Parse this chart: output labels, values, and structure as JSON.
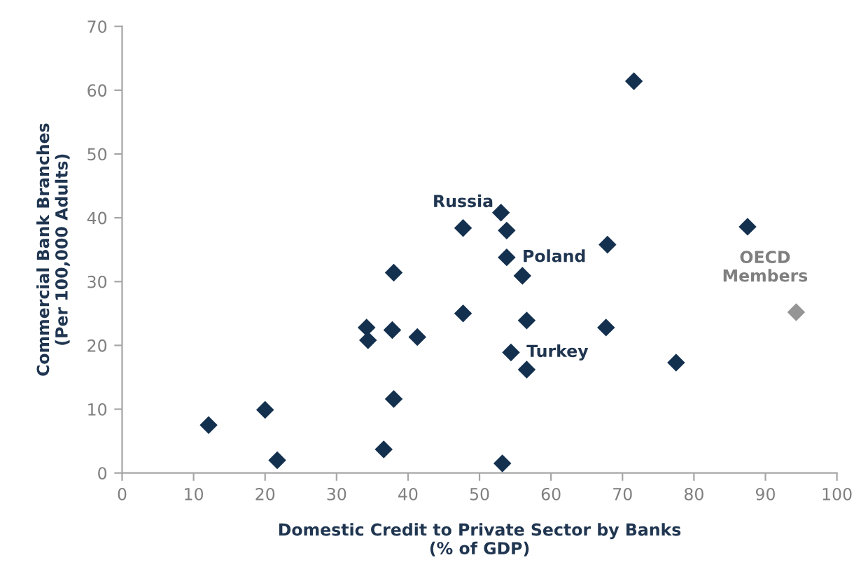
{
  "chart_data": {
    "type": "scatter",
    "xlabel": "Domestic Credit to Private Sector by Banks\n(% of GDP)",
    "ylabel": "Commercial Bank Branches\n(Per 100,000 Adults)",
    "xlim": [
      0,
      100
    ],
    "xticks": [
      0,
      10,
      20,
      30,
      40,
      50,
      60,
      70,
      80,
      90,
      100
    ],
    "ylim": [
      0,
      70
    ],
    "yticks": [
      0,
      10,
      20,
      30,
      40,
      50,
      60,
      70
    ],
    "grid": false,
    "legend": false,
    "marker": "diamond",
    "series": [
      {
        "color": "#14304f",
        "x": [
          12.1,
          20.0,
          21.7,
          34.4,
          34.2,
          38.0,
          37.8,
          38.0,
          36.6,
          41.3,
          47.7,
          47.7,
          53.0,
          53.8,
          53.8,
          56.0,
          56.6,
          54.4,
          56.6,
          53.2,
          67.7,
          67.9,
          71.6,
          77.5,
          87.5
        ],
        "values": [
          7.5,
          9.9,
          2.0,
          20.8,
          22.8,
          31.4,
          22.4,
          11.6,
          3.7,
          21.3,
          25.0,
          38.4,
          40.8,
          38.0,
          33.8,
          30.9,
          23.9,
          18.9,
          16.2,
          1.5,
          22.8,
          35.8,
          61.4,
          17.3,
          38.6
        ]
      },
      {
        "name": "OECD Members",
        "color": "#959595",
        "x": [
          94.3
        ],
        "values": [
          25.2
        ]
      }
    ],
    "annotations": [
      {
        "text": "Russia",
        "x": 47.7,
        "y": 38.4
      },
      {
        "text": "Poland",
        "x": 53.8,
        "y": 33.8
      },
      {
        "text": "Turkey",
        "x": 54.4,
        "y": 18.9
      }
    ]
  }
}
